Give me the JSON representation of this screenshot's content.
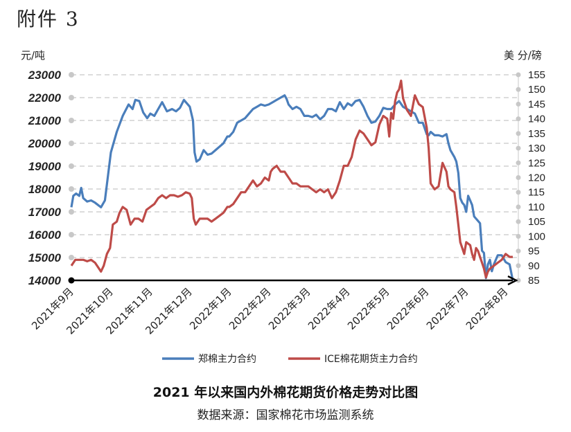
{
  "header": {
    "attachment": "附件 3"
  },
  "caption": {
    "title": "2021 年以来国内外棉花期货价格走势对比图",
    "source": "数据来源：国家棉花市场监测系统"
  },
  "colors": {
    "zce": "#4a7ebb",
    "ice": "#be4b48",
    "grid": "#d0d0d0",
    "axis": "#000000"
  },
  "chart_data": {
    "type": "line",
    "y_left_label": "元/吨",
    "y_right_label": "美 分/磅",
    "y_left_range": [
      14000,
      23000
    ],
    "y_left_ticks": [
      14000,
      15000,
      16000,
      17000,
      18000,
      19000,
      20000,
      21000,
      22000,
      23000
    ],
    "y_right_range": [
      85,
      155
    ],
    "y_right_ticks": [
      85,
      90,
      95,
      100,
      105,
      110,
      115,
      120,
      125,
      130,
      135,
      140,
      145,
      150,
      155
    ],
    "grid": "horizontal dashed",
    "legend_position": "bottom",
    "x_categories": [
      "2021年9月",
      "2021年10月",
      "2021年11月",
      "2021年12月",
      "2022年1月",
      "2022年2月",
      "2022年3月",
      "2022年4月",
      "2022年5月",
      "2022年6月",
      "2022年7月",
      "2022年8月"
    ],
    "series": [
      {
        "name": "郑棉主力合约",
        "axis": "left",
        "points": [
          [
            0.0,
            17200
          ],
          [
            0.05,
            17700
          ],
          [
            0.12,
            17800
          ],
          [
            0.2,
            17700
          ],
          [
            0.25,
            18050
          ],
          [
            0.3,
            17600
          ],
          [
            0.4,
            17450
          ],
          [
            0.5,
            17500
          ],
          [
            0.6,
            17400
          ],
          [
            0.75,
            17200
          ],
          [
            0.85,
            17500
          ],
          [
            1.0,
            19600
          ],
          [
            1.15,
            20500
          ],
          [
            1.3,
            21200
          ],
          [
            1.45,
            21700
          ],
          [
            1.55,
            21500
          ],
          [
            1.62,
            21900
          ],
          [
            1.72,
            21850
          ],
          [
            1.82,
            21350
          ],
          [
            1.92,
            21100
          ],
          [
            2.0,
            21300
          ],
          [
            2.1,
            21200
          ],
          [
            2.2,
            21500
          ],
          [
            2.3,
            21800
          ],
          [
            2.42,
            21400
          ],
          [
            2.55,
            21500
          ],
          [
            2.65,
            21400
          ],
          [
            2.75,
            21550
          ],
          [
            2.85,
            21900
          ],
          [
            2.95,
            21700
          ],
          [
            3.0,
            21600
          ],
          [
            3.08,
            21000
          ],
          [
            3.12,
            19600
          ],
          [
            3.17,
            19200
          ],
          [
            3.25,
            19300
          ],
          [
            3.35,
            19700
          ],
          [
            3.45,
            19500
          ],
          [
            3.55,
            19550
          ],
          [
            3.65,
            19700
          ],
          [
            3.75,
            19850
          ],
          [
            3.85,
            20000
          ],
          [
            3.95,
            20300
          ],
          [
            4.0,
            20300
          ],
          [
            4.1,
            20500
          ],
          [
            4.2,
            20900
          ],
          [
            4.3,
            21000
          ],
          [
            4.4,
            21100
          ],
          [
            4.5,
            21300
          ],
          [
            4.6,
            21500
          ],
          [
            4.7,
            21600
          ],
          [
            4.8,
            21700
          ],
          [
            4.9,
            21650
          ],
          [
            5.0,
            21700
          ],
          [
            5.1,
            21800
          ],
          [
            5.2,
            21900
          ],
          [
            5.3,
            22000
          ],
          [
            5.4,
            22100
          ],
          [
            5.45,
            21950
          ],
          [
            5.5,
            21700
          ],
          [
            5.6,
            21500
          ],
          [
            5.7,
            21600
          ],
          [
            5.8,
            21500
          ],
          [
            5.9,
            21200
          ],
          [
            6.0,
            21200
          ],
          [
            6.1,
            21150
          ],
          [
            6.2,
            21250
          ],
          [
            6.3,
            21050
          ],
          [
            6.4,
            21200
          ],
          [
            6.5,
            21500
          ],
          [
            6.6,
            21500
          ],
          [
            6.7,
            21400
          ],
          [
            6.8,
            21800
          ],
          [
            6.9,
            21500
          ],
          [
            7.0,
            21750
          ],
          [
            7.1,
            21650
          ],
          [
            7.2,
            21850
          ],
          [
            7.3,
            21900
          ],
          [
            7.4,
            21600
          ],
          [
            7.5,
            21200
          ],
          [
            7.6,
            20900
          ],
          [
            7.7,
            20950
          ],
          [
            7.8,
            21200
          ],
          [
            7.9,
            21550
          ],
          [
            8.0,
            21500
          ],
          [
            8.1,
            21500
          ],
          [
            8.2,
            21700
          ],
          [
            8.3,
            21850
          ],
          [
            8.4,
            21600
          ],
          [
            8.5,
            21500
          ],
          [
            8.6,
            21400
          ],
          [
            8.7,
            21300
          ],
          [
            8.8,
            20900
          ],
          [
            8.9,
            20900
          ],
          [
            9.0,
            20400
          ],
          [
            9.05,
            20350
          ],
          [
            9.1,
            20500
          ],
          [
            9.2,
            20350
          ],
          [
            9.3,
            20350
          ],
          [
            9.4,
            20300
          ],
          [
            9.5,
            20400
          ],
          [
            9.55,
            20000
          ],
          [
            9.6,
            19700
          ],
          [
            9.7,
            19400
          ],
          [
            9.75,
            19200
          ],
          [
            9.8,
            18700
          ],
          [
            9.85,
            17600
          ],
          [
            9.9,
            17400
          ],
          [
            9.95,
            17300
          ],
          [
            10.0,
            17000
          ],
          [
            10.05,
            17700
          ],
          [
            10.1,
            17500
          ],
          [
            10.15,
            17300
          ],
          [
            10.2,
            16800
          ],
          [
            10.25,
            16700
          ],
          [
            10.3,
            16600
          ],
          [
            10.35,
            16500
          ],
          [
            10.4,
            15300
          ],
          [
            10.45,
            15200
          ],
          [
            10.5,
            14100
          ],
          [
            10.55,
            14700
          ],
          [
            10.6,
            14900
          ],
          [
            10.65,
            14400
          ],
          [
            10.7,
            14700
          ],
          [
            10.8,
            15100
          ],
          [
            10.9,
            15100
          ],
          [
            11.0,
            14800
          ],
          [
            11.1,
            14700
          ],
          [
            11.18,
            14000
          ]
        ]
      },
      {
        "name": "ICE棉花期货主力合约",
        "axis": "right",
        "points": [
          [
            0.0,
            90
          ],
          [
            0.1,
            92
          ],
          [
            0.2,
            92
          ],
          [
            0.3,
            92
          ],
          [
            0.4,
            91.5
          ],
          [
            0.5,
            92
          ],
          [
            0.6,
            91
          ],
          [
            0.7,
            89
          ],
          [
            0.75,
            88
          ],
          [
            0.82,
            90
          ],
          [
            0.9,
            94
          ],
          [
            0.98,
            96
          ],
          [
            1.05,
            104
          ],
          [
            1.15,
            105
          ],
          [
            1.22,
            108
          ],
          [
            1.3,
            110
          ],
          [
            1.4,
            109
          ],
          [
            1.5,
            104
          ],
          [
            1.6,
            106
          ],
          [
            1.7,
            106
          ],
          [
            1.8,
            105
          ],
          [
            1.9,
            109
          ],
          [
            2.0,
            110
          ],
          [
            2.1,
            111
          ],
          [
            2.2,
            113
          ],
          [
            2.3,
            114
          ],
          [
            2.4,
            113
          ],
          [
            2.5,
            114
          ],
          [
            2.6,
            114
          ],
          [
            2.7,
            113.5
          ],
          [
            2.8,
            114
          ],
          [
            2.9,
            115
          ],
          [
            3.0,
            114.5
          ],
          [
            3.05,
            113
          ],
          [
            3.1,
            106
          ],
          [
            3.15,
            104
          ],
          [
            3.25,
            106
          ],
          [
            3.35,
            106
          ],
          [
            3.45,
            106
          ],
          [
            3.55,
            105
          ],
          [
            3.65,
            106
          ],
          [
            3.75,
            107
          ],
          [
            3.85,
            108
          ],
          [
            3.95,
            110
          ],
          [
            4.0,
            110
          ],
          [
            4.1,
            111
          ],
          [
            4.2,
            113
          ],
          [
            4.3,
            115
          ],
          [
            4.4,
            115
          ],
          [
            4.5,
            117
          ],
          [
            4.6,
            119
          ],
          [
            4.7,
            117
          ],
          [
            4.8,
            118
          ],
          [
            4.9,
            120
          ],
          [
            5.0,
            119
          ],
          [
            5.05,
            122
          ],
          [
            5.1,
            123
          ],
          [
            5.2,
            124
          ],
          [
            5.3,
            122
          ],
          [
            5.4,
            122
          ],
          [
            5.5,
            120
          ],
          [
            5.6,
            118
          ],
          [
            5.7,
            118
          ],
          [
            5.8,
            117
          ],
          [
            5.9,
            117
          ],
          [
            6.0,
            117
          ],
          [
            6.1,
            116
          ],
          [
            6.2,
            115
          ],
          [
            6.3,
            116
          ],
          [
            6.4,
            115
          ],
          [
            6.5,
            116
          ],
          [
            6.6,
            113
          ],
          [
            6.7,
            115
          ],
          [
            6.8,
            119
          ],
          [
            6.9,
            124
          ],
          [
            7.0,
            124
          ],
          [
            7.1,
            127
          ],
          [
            7.2,
            133
          ],
          [
            7.3,
            136
          ],
          [
            7.4,
            135
          ],
          [
            7.5,
            133
          ],
          [
            7.6,
            131
          ],
          [
            7.7,
            132
          ],
          [
            7.8,
            138
          ],
          [
            7.9,
            141
          ],
          [
            8.0,
            140
          ],
          [
            8.05,
            134
          ],
          [
            8.1,
            142
          ],
          [
            8.15,
            140
          ],
          [
            8.2,
            146
          ],
          [
            8.25,
            149
          ],
          [
            8.3,
            150
          ],
          [
            8.35,
            153
          ],
          [
            8.4,
            147
          ],
          [
            8.5,
            143
          ],
          [
            8.6,
            141
          ],
          [
            8.7,
            148
          ],
          [
            8.8,
            145
          ],
          [
            8.9,
            144
          ],
          [
            9.0,
            137
          ],
          [
            9.05,
            130
          ],
          [
            9.1,
            118
          ],
          [
            9.2,
            116
          ],
          [
            9.3,
            117
          ],
          [
            9.4,
            125
          ],
          [
            9.5,
            122
          ],
          [
            9.55,
            117
          ],
          [
            9.6,
            116
          ],
          [
            9.7,
            115
          ],
          [
            9.75,
            110
          ],
          [
            9.8,
            104
          ],
          [
            9.85,
            98
          ],
          [
            9.9,
            96
          ],
          [
            9.95,
            94
          ],
          [
            10.0,
            98
          ],
          [
            10.1,
            97
          ],
          [
            10.15,
            94
          ],
          [
            10.2,
            92
          ],
          [
            10.25,
            96
          ],
          [
            10.3,
            95
          ],
          [
            10.35,
            93
          ],
          [
            10.4,
            91
          ],
          [
            10.45,
            89
          ],
          [
            10.5,
            86
          ],
          [
            10.55,
            88
          ],
          [
            10.6,
            89
          ],
          [
            10.7,
            90
          ],
          [
            10.8,
            91
          ],
          [
            10.9,
            92
          ],
          [
            11.0,
            94
          ],
          [
            11.1,
            93
          ],
          [
            11.18,
            93
          ]
        ]
      }
    ]
  }
}
